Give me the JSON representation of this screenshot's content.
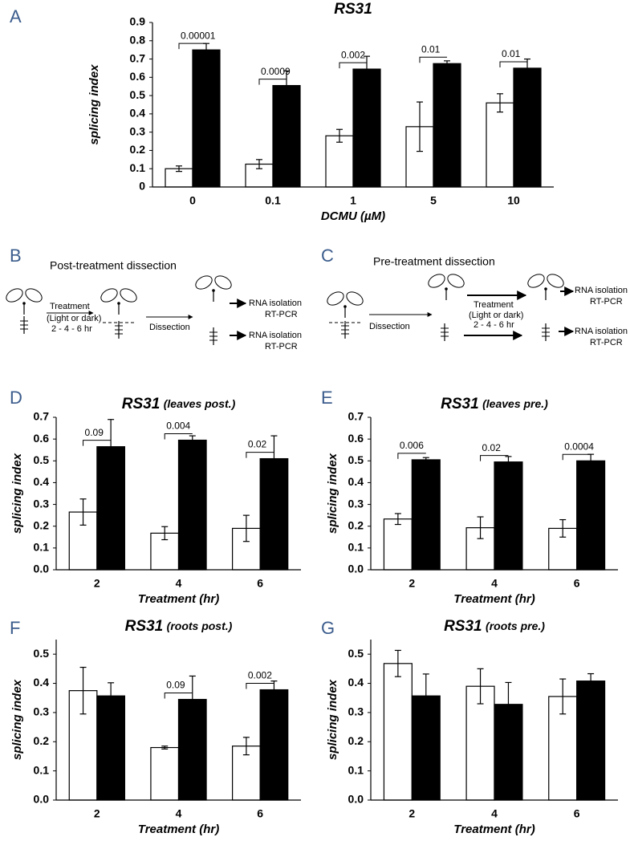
{
  "chart_data": [
    {
      "type": "bar",
      "panel": "A",
      "title": "RS31",
      "xlabel": "DCMU (µM)",
      "ylabel": "splicing index",
      "categories": [
        "0",
        "0.1",
        "1",
        "5",
        "10"
      ],
      "series": [
        {
          "color": "#ffffff",
          "values": [
            0.1,
            0.125,
            0.28,
            0.33,
            0.46
          ],
          "errors": [
            0.015,
            0.025,
            0.035,
            0.135,
            0.05
          ]
        },
        {
          "color": "#000000",
          "values": [
            0.75,
            0.555,
            0.645,
            0.675,
            0.65
          ],
          "errors": [
            0.035,
            0.08,
            0.07,
            0.015,
            0.05
          ]
        }
      ],
      "pvalues": [
        "0.00001",
        "0.0009",
        "0.002",
        "0.01",
        "0.01"
      ],
      "ylim": [
        0,
        0.9
      ],
      "yticks": [
        0,
        0.1,
        0.2,
        0.3,
        0.4,
        0.5,
        0.6,
        0.7,
        0.8,
        0.9
      ],
      "grid": false
    },
    {
      "type": "bar",
      "panel": "D",
      "title": "RS31",
      "subtitle": "(leaves post.)",
      "xlabel": "Treatment (hr)",
      "ylabel": "splicing index",
      "categories": [
        "2",
        "4",
        "6"
      ],
      "series": [
        {
          "color": "#ffffff",
          "values": [
            0.265,
            0.168,
            0.19
          ],
          "errors": [
            0.06,
            0.03,
            0.06
          ]
        },
        {
          "color": "#000000",
          "values": [
            0.565,
            0.595,
            0.51
          ],
          "errors": [
            0.125,
            0.02,
            0.105
          ]
        }
      ],
      "pvalues": [
        "0.09",
        "0.004",
        "0.02"
      ],
      "ylim": [
        0,
        0.7
      ],
      "yticks": [
        {
          "value": 0,
          "label": "0.0"
        },
        0.1,
        0.2,
        0.3,
        0.4,
        0.5,
        0.6,
        0.7
      ],
      "grid": false
    },
    {
      "type": "bar",
      "panel": "E",
      "title": "RS31",
      "subtitle": "(leaves pre.)",
      "xlabel": "Treatment (hr)",
      "ylabel": "splicing index",
      "categories": [
        "2",
        "4",
        "6"
      ],
      "series": [
        {
          "color": "#ffffff",
          "values": [
            0.233,
            0.193,
            0.19
          ],
          "errors": [
            0.025,
            0.05,
            0.04
          ]
        },
        {
          "color": "#000000",
          "values": [
            0.505,
            0.495,
            0.5
          ],
          "errors": [
            0.01,
            0.025,
            0.03
          ]
        }
      ],
      "pvalues": [
        "0.006",
        "0.02",
        "0.0004"
      ],
      "ylim": [
        0,
        0.7
      ],
      "yticks": [
        {
          "value": 0,
          "label": "0.0"
        },
        0.1,
        0.2,
        0.3,
        0.4,
        0.5,
        0.6,
        0.7
      ],
      "grid": false
    },
    {
      "type": "bar",
      "panel": "F",
      "title": "RS31",
      "subtitle": "(roots post.)",
      "xlabel": "Treatment (hr)",
      "ylabel": "splicing index",
      "categories": [
        "2",
        "4",
        "6"
      ],
      "series": [
        {
          "color": "#ffffff",
          "values": [
            0.375,
            0.18,
            0.185
          ],
          "errors": [
            0.08,
            0.005,
            0.03
          ]
        },
        {
          "color": "#000000",
          "values": [
            0.357,
            0.345,
            0.378
          ],
          "errors": [
            0.045,
            0.08,
            0.03
          ]
        }
      ],
      "pvalues": [
        null,
        "0.09",
        "0.002"
      ],
      "ylim": [
        0,
        0.55
      ],
      "yticks": [
        {
          "value": 0,
          "label": "0.0"
        },
        0.1,
        0.2,
        0.3,
        0.4,
        0.5
      ],
      "grid": false
    },
    {
      "type": "bar",
      "panel": "G",
      "title": "RS31",
      "subtitle": "(roots pre.)",
      "xlabel": "Treatment (hr)",
      "ylabel": "splicing index",
      "categories": [
        "2",
        "4",
        "6"
      ],
      "series": [
        {
          "color": "#ffffff",
          "values": [
            0.468,
            0.39,
            0.355
          ],
          "errors": [
            0.045,
            0.06,
            0.06
          ]
        },
        {
          "color": "#000000",
          "values": [
            0.357,
            0.328,
            0.408
          ],
          "errors": [
            0.075,
            0.075,
            0.025
          ]
        }
      ],
      "ylim": [
        0,
        0.55
      ],
      "yticks": [
        {
          "value": 0,
          "label": "0.0"
        },
        0.1,
        0.2,
        0.3,
        0.4,
        0.5
      ],
      "grid": false
    }
  ],
  "diagrams": [
    {
      "panel": "B",
      "title": "Post-treatment dissection",
      "labels": [
        "Treatment",
        "(Light or dark)",
        "2 - 4 - 6 hr",
        "Dissection",
        "RNA isolation",
        "RT-PCR",
        "RNA isolation",
        "RT-PCR"
      ]
    },
    {
      "panel": "C",
      "title": "Pre-treatment dissection",
      "labels": [
        "Dissection",
        "Treatment",
        "(Light or dark)",
        "2 - 4 - 6 hr",
        "RNA isolation",
        "RT-PCR",
        "RNA isolation",
        "RT-PCR"
      ]
    }
  ]
}
